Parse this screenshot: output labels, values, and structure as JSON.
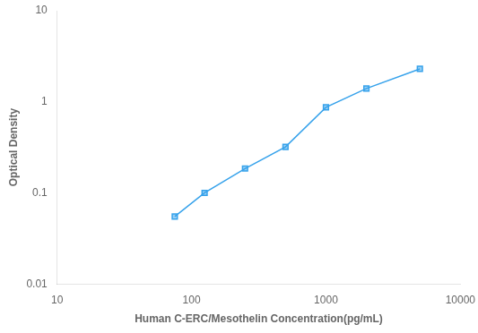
{
  "chart_data": {
    "type": "line",
    "x": [
      75,
      125,
      250,
      500,
      1000,
      2000,
      5000
    ],
    "values": [
      0.055,
      0.1,
      0.185,
      0.32,
      0.87,
      1.4,
      2.3
    ],
    "xlabel": "Human C-ERC/Mesothelin Concentration(pg/mL)",
    "ylabel": "Optical Density",
    "xlim": [
      10,
      10000
    ],
    "ylim": [
      0.01,
      10
    ],
    "xticks": [
      10,
      100,
      1000,
      10000
    ],
    "yticks": [
      0.01,
      0.1,
      1,
      10
    ],
    "log": true,
    "grid": false,
    "marker": "square",
    "line_style": "solid"
  }
}
